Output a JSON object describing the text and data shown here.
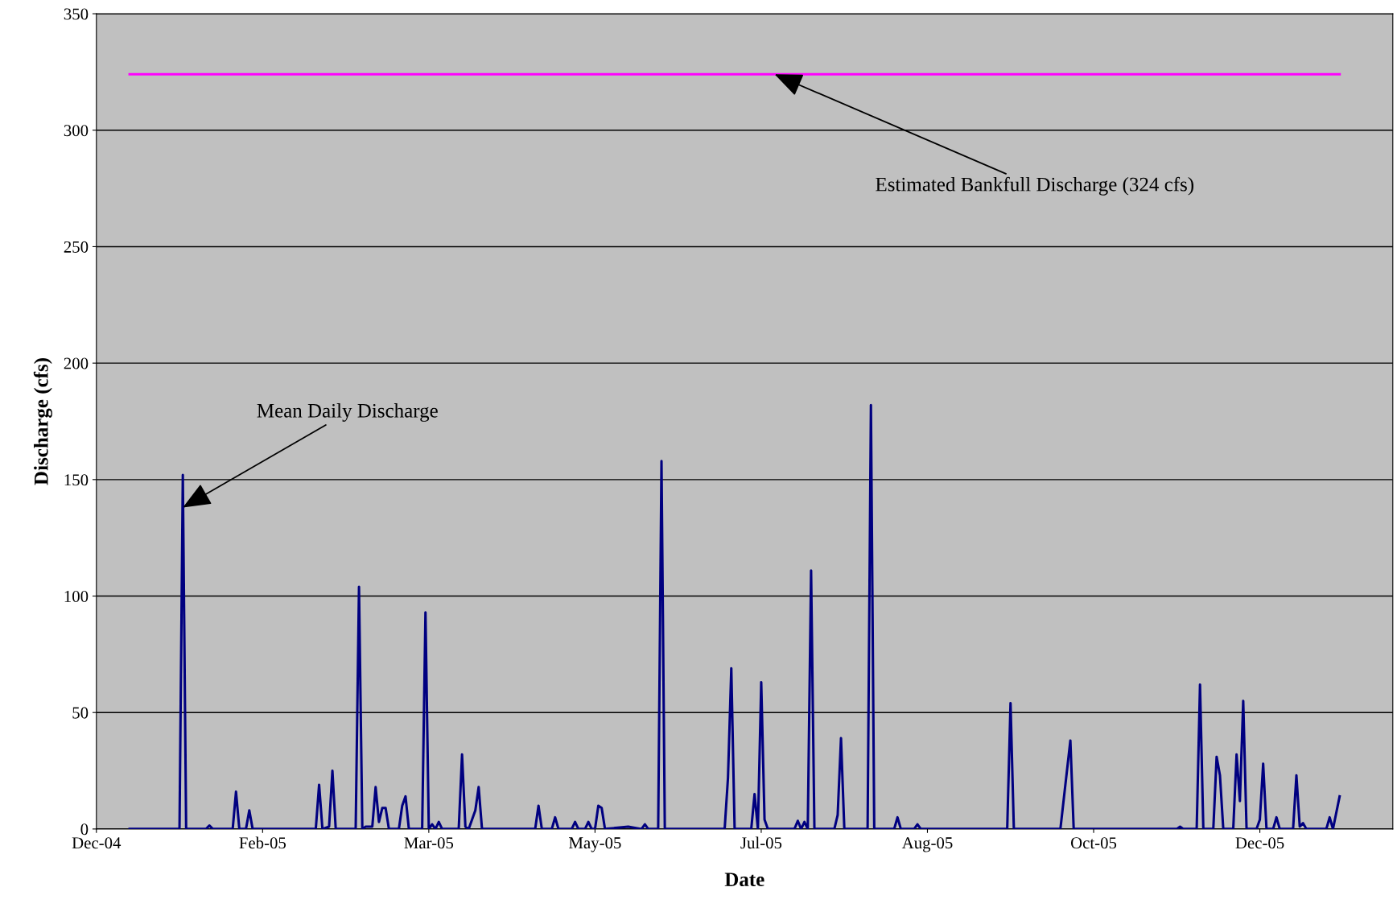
{
  "chart_data": {
    "type": "line",
    "xlabel": "Date",
    "ylabel": "Discharge (cfs)",
    "series": [
      {
        "color": "#000080",
        "x": [
          "2004-12-29",
          "2005-01-13",
          "2005-01-14",
          "2005-01-15",
          "2005-01-21",
          "2005-01-22",
          "2005-01-23",
          "2005-01-29",
          "2005-01-30",
          "2005-01-31",
          "2005-02-02",
          "2005-02-03",
          "2005-02-04",
          "2005-02-23",
          "2005-02-24",
          "2005-02-25",
          "2005-02-27",
          "2005-02-28",
          "2005-03-01",
          "2005-03-07",
          "2005-03-08",
          "2005-03-09",
          "2005-03-10",
          "2005-03-12",
          "2005-03-13",
          "2005-03-14",
          "2005-03-15",
          "2005-03-16",
          "2005-03-17",
          "2005-03-20",
          "2005-03-21",
          "2005-03-22",
          "2005-03-23",
          "2005-03-27",
          "2005-03-28",
          "2005-03-29",
          "2005-03-30",
          "2005-03-31",
          "2005-04-01",
          "2005-04-02",
          "2005-04-07",
          "2005-04-08",
          "2005-04-09",
          "2005-04-10",
          "2005-04-12",
          "2005-04-13",
          "2005-04-14",
          "2005-04-30",
          "2005-05-01",
          "2005-05-02",
          "2005-05-05",
          "2005-05-06",
          "2005-05-07",
          "2005-05-11",
          "2005-05-12",
          "2005-05-13",
          "2005-05-15",
          "2005-05-16",
          "2005-05-17",
          "2005-05-18",
          "2005-05-19",
          "2005-05-20",
          "2005-05-21",
          "2005-05-28",
          "2005-06-01",
          "2005-06-02",
          "2005-06-03",
          "2005-06-06",
          "2005-06-07",
          "2005-06-08",
          "2005-06-26",
          "2005-06-27",
          "2005-06-28",
          "2005-06-29",
          "2005-07-04",
          "2005-07-05",
          "2005-07-06",
          "2005-07-07",
          "2005-07-08",
          "2005-07-09",
          "2005-07-17",
          "2005-07-18",
          "2005-07-19",
          "2005-07-20",
          "2005-07-21",
          "2005-07-22",
          "2005-07-23",
          "2005-07-29",
          "2005-07-30",
          "2005-07-31",
          "2005-08-01",
          "2005-08-08",
          "2005-08-09",
          "2005-08-10",
          "2005-08-16",
          "2005-08-17",
          "2005-08-18",
          "2005-08-22",
          "2005-08-23",
          "2005-08-24",
          "2005-09-19",
          "2005-09-20",
          "2005-09-21",
          "2005-10-05",
          "2005-10-08",
          "2005-10-09",
          "2005-11-09",
          "2005-11-10",
          "2005-11-11",
          "2005-11-15",
          "2005-11-16",
          "2005-11-17",
          "2005-11-20",
          "2005-11-21",
          "2005-11-22",
          "2005-11-23",
          "2005-11-26",
          "2005-11-27",
          "2005-11-28",
          "2005-11-29",
          "2005-11-30",
          "2005-12-03",
          "2005-12-04",
          "2005-12-05",
          "2005-12-06",
          "2005-12-08",
          "2005-12-09",
          "2005-12-10",
          "2005-12-14",
          "2005-12-15",
          "2005-12-16",
          "2005-12-17",
          "2005-12-18",
          "2005-12-24",
          "2005-12-25",
          "2005-12-26",
          "2005-12-28"
        ],
        "values": [
          0,
          0,
          152,
          0,
          0,
          1.5,
          0,
          0,
          16,
          0,
          0,
          8,
          0,
          0,
          19,
          0,
          1,
          25,
          0,
          0,
          104,
          0,
          1,
          1,
          18,
          3,
          9,
          9,
          0,
          0,
          10,
          14,
          0,
          0,
          93,
          0,
          2,
          0,
          3,
          0,
          0,
          32,
          1,
          0,
          8,
          18,
          0,
          0,
          10,
          0,
          0,
          5,
          0,
          0,
          3,
          0,
          0,
          3,
          0,
          0,
          10,
          9,
          0,
          1,
          0,
          2,
          0,
          0,
          158,
          0,
          0,
          22,
          69,
          0,
          0,
          15,
          0,
          63,
          4,
          0,
          0,
          3.5,
          0,
          3,
          0,
          111,
          0,
          0,
          6,
          39,
          0,
          0,
          182,
          0,
          0,
          5,
          0,
          0,
          2,
          0,
          0,
          54,
          0,
          0,
          38,
          0,
          0,
          1,
          0,
          0,
          62,
          0,
          0,
          31,
          23,
          0,
          0,
          32,
          12,
          55,
          0,
          0,
          4,
          28,
          0,
          0,
          5,
          0,
          0,
          23,
          1,
          2.5,
          0,
          0,
          5,
          0,
          14
        ]
      },
      {
        "color": "#ff00ff",
        "x": [
          "2004-12-29",
          "2005-12-28"
        ],
        "values": [
          324,
          324
        ]
      }
    ],
    "xlim": [
      "2004-12-19",
      "2006-01-13"
    ],
    "xticks": [
      {
        "value": "2004-12-19",
        "label": "Dec-04"
      },
      {
        "value": "2005-02-07",
        "label": "Feb-05"
      },
      {
        "value": "2005-03-29",
        "label": "Mar-05"
      },
      {
        "value": "2005-05-18",
        "label": "May-05"
      },
      {
        "value": "2005-07-07",
        "label": "Jul-05"
      },
      {
        "value": "2005-08-26",
        "label": "Aug-05"
      },
      {
        "value": "2005-10-15",
        "label": "Oct-05"
      },
      {
        "value": "2005-12-04",
        "label": "Dec-05"
      }
    ],
    "ylim": [
      0,
      350
    ],
    "yticks": [
      0,
      50,
      100,
      150,
      200,
      250,
      300,
      350
    ],
    "grid": "y",
    "annotations": [
      {
        "text": "Mean Daily Discharge",
        "x": "2005-01-14",
        "y": 138
      },
      {
        "text": "Estimated Bankfull Discharge (324 cfs)",
        "x": "2005-07-11",
        "y": 324
      }
    ]
  }
}
